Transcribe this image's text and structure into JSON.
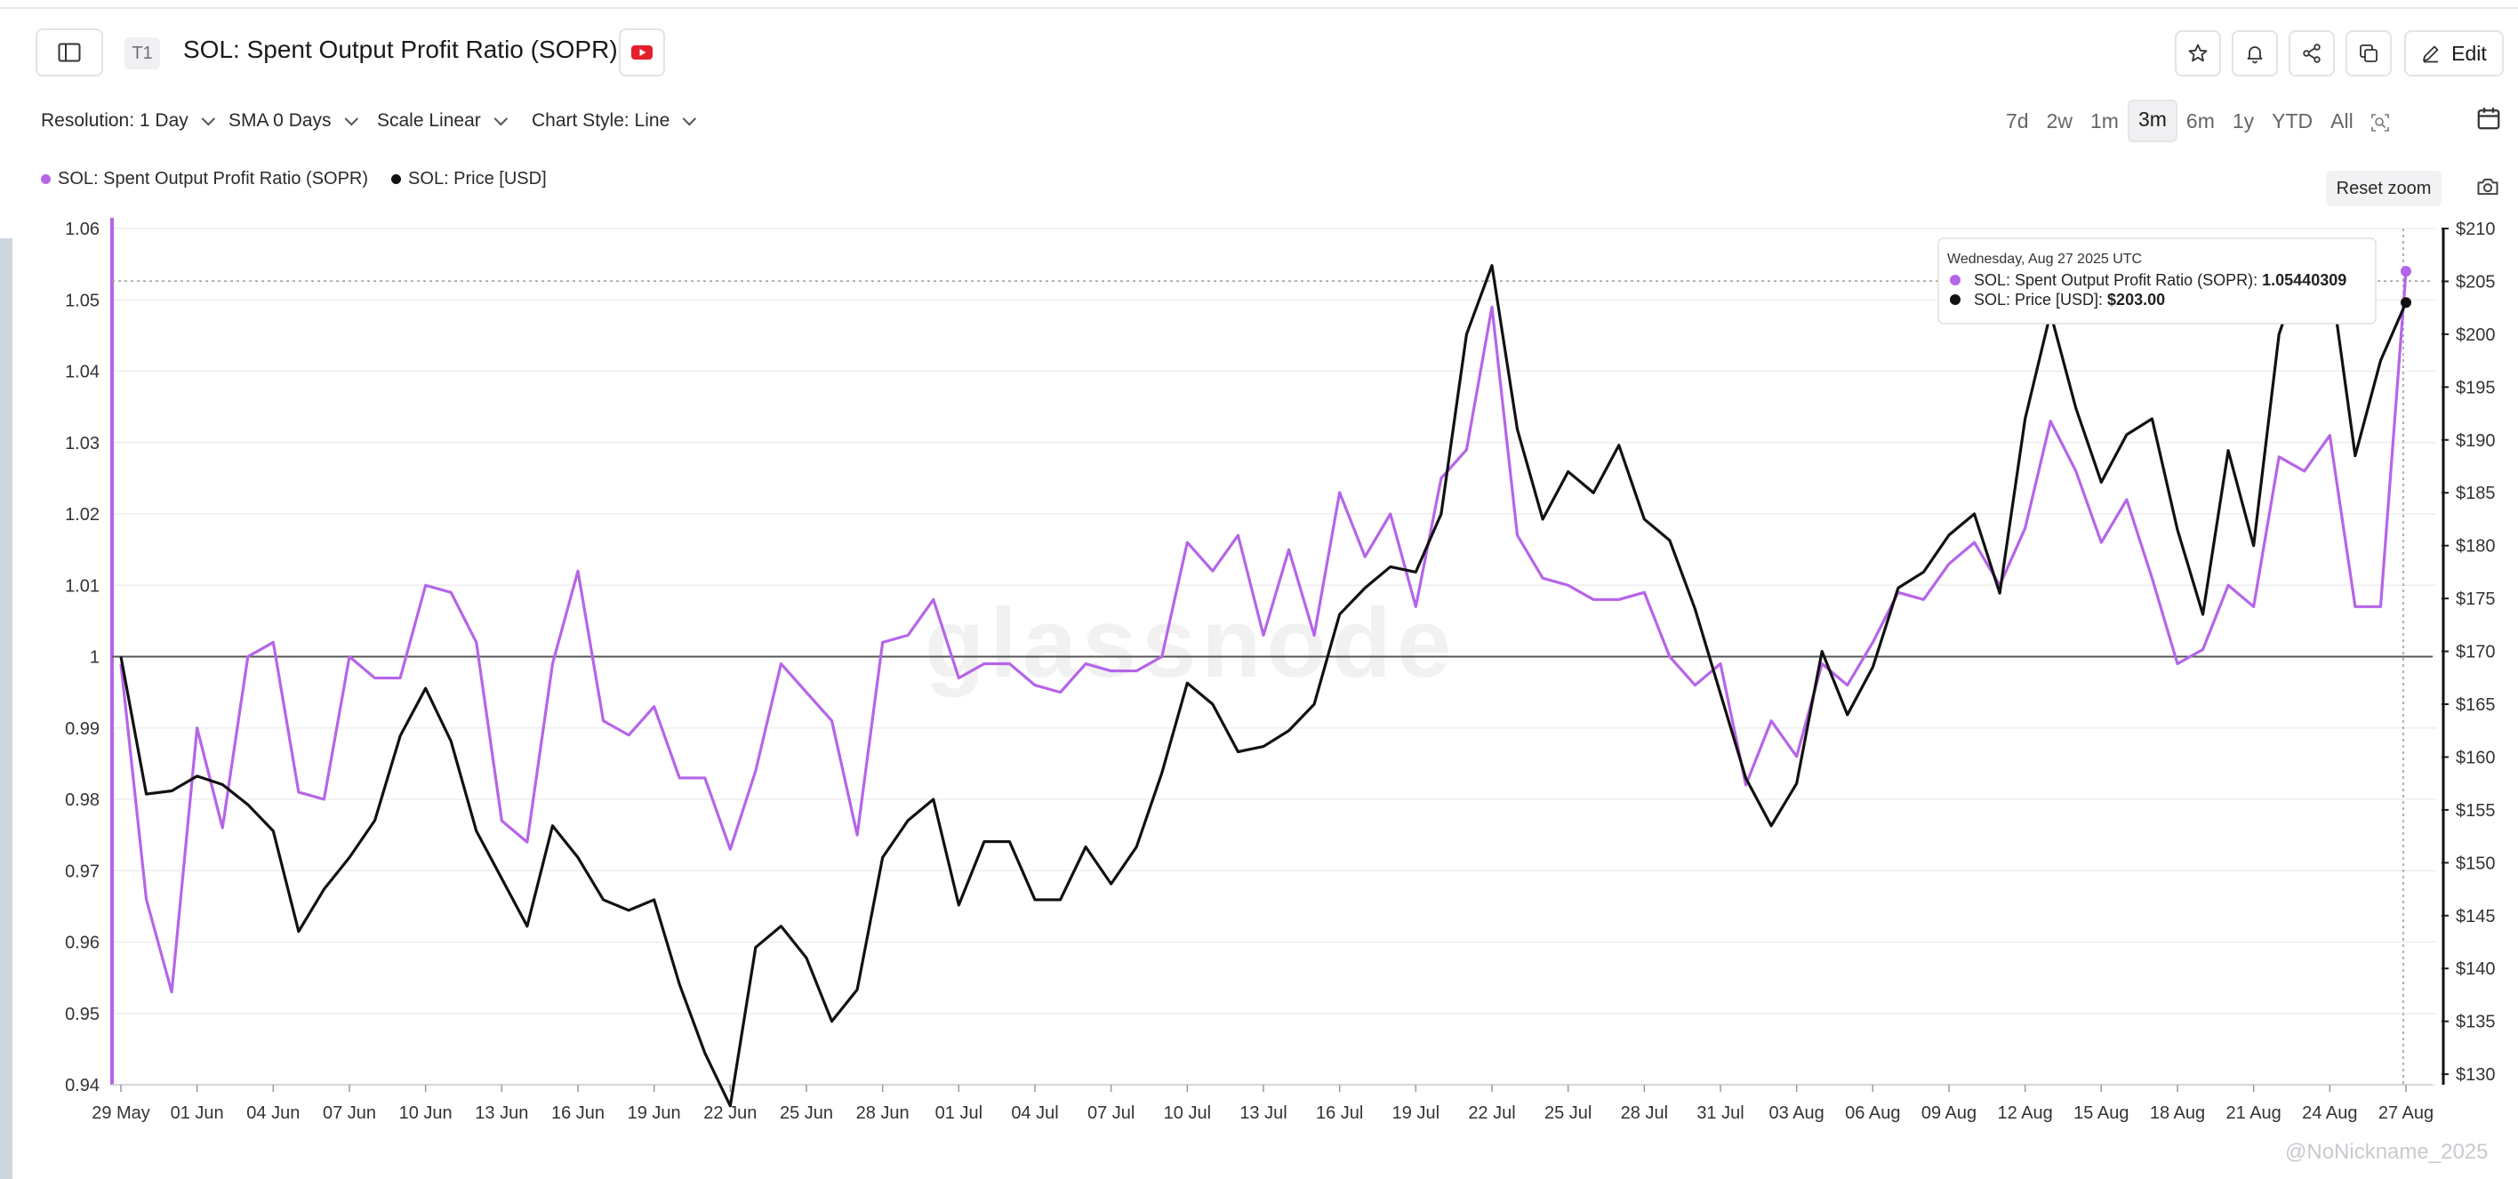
{
  "toolbar": {
    "badge": "T1",
    "title": "SOL: Spent Output Profit Ratio (SOPR)",
    "edit_label": "Edit",
    "youtube_color": "#e3202b"
  },
  "controls": {
    "resolution": "Resolution: 1 Day",
    "sma": "SMA 0 Days",
    "scale": "Scale Linear",
    "chart_style": "Chart Style: Line"
  },
  "ranges": [
    "7d",
    "2w",
    "1m",
    "3m",
    "6m",
    "1y",
    "YTD",
    "All"
  ],
  "active_range": "3m",
  "reset_zoom": "Reset zoom",
  "watermark": {
    "center": "glassnode",
    "bottom": "@NoNickname_2025"
  },
  "colors": {
    "sopr": "#b565e8",
    "price": "#111111",
    "baseline": "#555555",
    "grid": "#eeeeee"
  },
  "tooltip": {
    "date": "Wednesday, Aug 27 2025 UTC",
    "sopr_label": "SOL: Spent Output Profit Ratio (SOPR):",
    "sopr_value": "1.05440309",
    "price_label": "SOL: Price [USD]:",
    "price_value": "$203.00"
  },
  "chart_data": {
    "type": "line",
    "x_labels": [
      "29 May",
      "01 Jun",
      "04 Jun",
      "07 Jun",
      "10 Jun",
      "13 Jun",
      "16 Jun",
      "19 Jun",
      "22 Jun",
      "25 Jun",
      "28 Jun",
      "01 Jul",
      "04 Jul",
      "07 Jul",
      "10 Jul",
      "13 Jul",
      "16 Jul",
      "19 Jul",
      "22 Jul",
      "25 Jul",
      "28 Jul",
      "31 Jul",
      "03 Aug",
      "06 Aug",
      "09 Aug",
      "12 Aug",
      "15 Aug",
      "18 Aug",
      "21 Aug",
      "24 Aug",
      "27 Aug"
    ],
    "y_left_ticks": [
      "1.06",
      "1.05",
      "1.04",
      "1.03",
      "1.02",
      "1.01",
      "1",
      "0.99",
      "0.98",
      "0.97",
      "0.96",
      "0.95",
      "0.94"
    ],
    "y_right_ticks": [
      "$210",
      "$205",
      "$200",
      "$195",
      "$190",
      "$185",
      "$180",
      "$175",
      "$170",
      "$165",
      "$160",
      "$155",
      "$150",
      "$145",
      "$140",
      "$135",
      "$130"
    ],
    "y_left_range": [
      0.94,
      1.06
    ],
    "y_right_range": [
      129,
      210
    ],
    "baseline": 1,
    "legend_placement": "top-left",
    "series": [
      {
        "name": "SOL: Spent Output Profit Ratio (SOPR)",
        "axis": "left",
        "values": [
          0.999,
          0.966,
          0.953,
          0.99,
          0.976,
          1.0,
          1.002,
          0.981,
          0.98,
          1.0,
          0.997,
          0.997,
          1.01,
          1.009,
          1.002,
          0.977,
          0.974,
          0.999,
          1.012,
          0.991,
          0.989,
          0.993,
          0.983,
          0.983,
          0.973,
          0.984,
          0.999,
          0.995,
          0.991,
          0.975,
          1.002,
          1.003,
          1.008,
          0.997,
          0.999,
          0.999,
          0.996,
          0.995,
          0.999,
          0.998,
          0.998,
          1.0,
          1.016,
          1.012,
          1.017,
          1.003,
          1.015,
          1.003,
          1.023,
          1.014,
          1.02,
          1.007,
          1.025,
          1.029,
          1.049,
          1.017,
          1.011,
          1.01,
          1.008,
          1.008,
          1.009,
          1.0,
          0.996,
          0.999,
          0.982,
          0.991,
          0.986,
          0.999,
          0.996,
          1.002,
          1.009,
          1.008,
          1.013,
          1.016,
          1.01,
          1.018,
          1.033,
          1.026,
          1.016,
          1.022,
          1.011,
          0.999,
          1.001,
          1.01,
          1.007,
          1.028,
          1.026,
          1.031,
          1.007,
          1.007,
          1.054
        ]
      },
      {
        "name": "SOL: Price [USD]",
        "axis": "right",
        "values": [
          169.5,
          156.5,
          156.8,
          158.2,
          157.4,
          155.5,
          153,
          143.5,
          147.5,
          150.5,
          154,
          162,
          166.5,
          161.5,
          153,
          148.5,
          144,
          153.5,
          150.5,
          146.5,
          145.5,
          146.5,
          138.5,
          132,
          127,
          142,
          144,
          141,
          135,
          138,
          150.5,
          154,
          156,
          146,
          152,
          152,
          146.5,
          146.5,
          151.5,
          148,
          151.5,
          158.5,
          167,
          165,
          160.5,
          161,
          162.5,
          165,
          173.5,
          176,
          178,
          177.5,
          183,
          200,
          206.5,
          191,
          182.5,
          187,
          185,
          189.5,
          182.5,
          180.5,
          174,
          166,
          158,
          153.5,
          157.5,
          170,
          164,
          168.5,
          176,
          177.5,
          181,
          183,
          175.5,
          192,
          202,
          193,
          186,
          190.5,
          192,
          181.5,
          173.5,
          189,
          180,
          200,
          207,
          206,
          188.5,
          197.5,
          203
        ]
      }
    ]
  }
}
